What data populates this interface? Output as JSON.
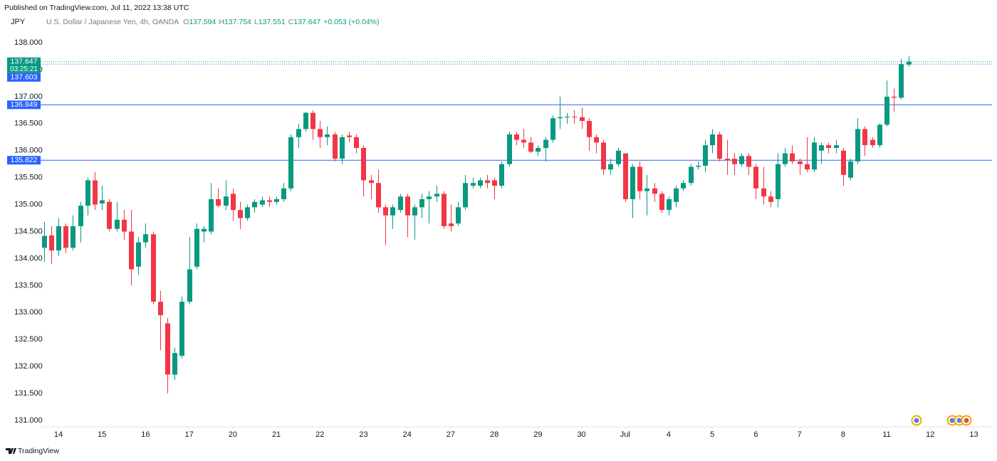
{
  "header": {
    "published": "Published on TradingView.com, Jul 11, 2022 13:38 UTC",
    "brand": "TradingView"
  },
  "chart_data": {
    "type": "candlestick",
    "axis_label": "JPY",
    "title": "U.S. Dollar / Japanese Yen, 4h, OANDA",
    "ohlc_labels": [
      "O",
      "H",
      "L",
      "C"
    ],
    "change": "+0.053 (+0.04%)",
    "up_color": "#089981",
    "down_color": "#f23645",
    "grid": false,
    "ylim": [
      130.882,
      138.527
    ],
    "yticks": [
      {
        "value": 131,
        "label": "131.000"
      },
      {
        "value": 131.5,
        "label": "131.500"
      },
      {
        "value": 132,
        "label": "132.000"
      },
      {
        "value": 132.5,
        "label": "132.500"
      },
      {
        "value": 133,
        "label": "133.000"
      },
      {
        "value": 133.5,
        "label": "133.500"
      },
      {
        "value": 134,
        "label": "134.000"
      },
      {
        "value": 134.5,
        "label": "134.500"
      },
      {
        "value": 135,
        "label": "135.000"
      },
      {
        "value": 135.5,
        "label": "135.500"
      },
      {
        "value": 136,
        "label": "136.000"
      },
      {
        "value": 136.5,
        "label": "136.500"
      },
      {
        "value": 137,
        "label": "137.000"
      },
      {
        "value": 137.5,
        "label": "137.500"
      },
      {
        "value": 138,
        "label": "138.000"
      }
    ],
    "xlim": [
      -0.45,
      130.5
    ],
    "xticks": [
      {
        "value": 2,
        "label": "14"
      },
      {
        "value": 8,
        "label": "15"
      },
      {
        "value": 14,
        "label": "16"
      },
      {
        "value": 20,
        "label": "17"
      },
      {
        "value": 26,
        "label": "20"
      },
      {
        "value": 32,
        "label": "21"
      },
      {
        "value": 38,
        "label": "22"
      },
      {
        "value": 44,
        "label": "23"
      },
      {
        "value": 50,
        "label": "24"
      },
      {
        "value": 56,
        "label": "27"
      },
      {
        "value": 62,
        "label": "28"
      },
      {
        "value": 68,
        "label": "29"
      },
      {
        "value": 74,
        "label": "30"
      },
      {
        "value": 80,
        "label": "Jul"
      },
      {
        "value": 86,
        "label": "4"
      },
      {
        "value": 92,
        "label": "5"
      },
      {
        "value": 98,
        "label": "6"
      },
      {
        "value": 104,
        "label": "7"
      },
      {
        "value": 110,
        "label": "8"
      },
      {
        "value": 116,
        "label": "11"
      },
      {
        "value": 122,
        "label": "12"
      },
      {
        "value": 128,
        "label": "13"
      }
    ],
    "price_lines": [
      {
        "value": 137.647,
        "color": "#089981",
        "dashed": true,
        "countdown": "03:25:21"
      },
      {
        "value": 137.603,
        "color": "#2962ff",
        "dashed": true
      },
      {
        "value": 136.849,
        "color": "#2962ff",
        "dashed": false
      },
      {
        "value": 135.822,
        "color": "#2962ff",
        "dashed": false
      }
    ],
    "candles": [
      {
        "open": 134.2,
        "high": 134.68,
        "low": 133.94,
        "close": 134.42
      },
      {
        "open": 134.43,
        "high": 134.6,
        "low": 133.9,
        "close": 134.15
      },
      {
        "open": 134.15,
        "high": 134.75,
        "low": 134.05,
        "close": 134.6
      },
      {
        "open": 134.6,
        "high": 134.65,
        "low": 134.1,
        "close": 134.2
      },
      {
        "open": 134.2,
        "high": 134.8,
        "low": 134.15,
        "close": 134.6
      },
      {
        "open": 134.6,
        "high": 135.05,
        "low": 134.3,
        "close": 134.98
      },
      {
        "open": 134.98,
        "high": 135.5,
        "low": 134.8,
        "close": 135.45
      },
      {
        "open": 135.45,
        "high": 135.6,
        "low": 134.9,
        "close": 135.0
      },
      {
        "open": 135.02,
        "high": 135.35,
        "low": 134.9,
        "close": 135.08
      },
      {
        "open": 135.05,
        "high": 135.1,
        "low": 134.5,
        "close": 134.55
      },
      {
        "open": 134.55,
        "high": 135.05,
        "low": 134.5,
        "close": 134.72
      },
      {
        "open": 134.72,
        "high": 134.9,
        "low": 134.35,
        "close": 134.5
      },
      {
        "open": 134.5,
        "high": 134.9,
        "low": 133.5,
        "close": 133.8
      },
      {
        "open": 133.85,
        "high": 134.4,
        "low": 133.7,
        "close": 134.3
      },
      {
        "open": 134.3,
        "high": 134.65,
        "low": 134.2,
        "close": 134.45
      },
      {
        "open": 134.45,
        "high": 134.5,
        "low": 133.15,
        "close": 133.2
      },
      {
        "open": 133.2,
        "high": 133.4,
        "low": 132.3,
        "close": 132.95
      },
      {
        "open": 132.8,
        "high": 132.9,
        "low": 131.5,
        "close": 131.85
      },
      {
        "open": 131.85,
        "high": 132.35,
        "low": 131.75,
        "close": 132.25
      },
      {
        "open": 132.2,
        "high": 133.3,
        "low": 132.15,
        "close": 133.2
      },
      {
        "open": 133.2,
        "high": 134.4,
        "low": 133.15,
        "close": 133.8
      },
      {
        "open": 133.85,
        "high": 134.65,
        "low": 133.8,
        "close": 134.55
      },
      {
        "open": 134.5,
        "high": 134.6,
        "low": 134.3,
        "close": 134.55
      },
      {
        "open": 134.5,
        "high": 135.4,
        "low": 134.45,
        "close": 135.1
      },
      {
        "open": 135.1,
        "high": 135.3,
        "low": 134.95,
        "close": 134.98
      },
      {
        "open": 134.98,
        "high": 135.45,
        "low": 134.9,
        "close": 135.15
      },
      {
        "open": 135.2,
        "high": 135.3,
        "low": 134.7,
        "close": 134.9
      },
      {
        "open": 134.9,
        "high": 135.05,
        "low": 134.55,
        "close": 134.75
      },
      {
        "open": 134.75,
        "high": 135.0,
        "low": 134.7,
        "close": 134.95
      },
      {
        "open": 134.95,
        "high": 135.1,
        "low": 134.85,
        "close": 135.05
      },
      {
        "open": 135.0,
        "high": 135.15,
        "low": 134.95,
        "close": 135.08
      },
      {
        "open": 135.08,
        "high": 135.15,
        "low": 134.95,
        "close": 135.05
      },
      {
        "open": 135.05,
        "high": 135.15,
        "low": 135.0,
        "close": 135.1
      },
      {
        "open": 135.1,
        "high": 135.4,
        "low": 135.05,
        "close": 135.3
      },
      {
        "open": 135.3,
        "high": 136.3,
        "low": 135.25,
        "close": 136.25
      },
      {
        "open": 136.25,
        "high": 136.5,
        "low": 136.05,
        "close": 136.4
      },
      {
        "open": 136.4,
        "high": 136.72,
        "low": 136.35,
        "close": 136.7
      },
      {
        "open": 136.7,
        "high": 136.75,
        "low": 136.2,
        "close": 136.4
      },
      {
        "open": 136.4,
        "high": 136.55,
        "low": 136.05,
        "close": 136.25
      },
      {
        "open": 136.25,
        "high": 136.45,
        "low": 136.1,
        "close": 136.3
      },
      {
        "open": 136.3,
        "high": 136.35,
        "low": 135.8,
        "close": 135.85
      },
      {
        "open": 135.85,
        "high": 136.3,
        "low": 135.75,
        "close": 136.25
      },
      {
        "open": 136.28,
        "high": 136.35,
        "low": 136.15,
        "close": 136.25
      },
      {
        "open": 136.25,
        "high": 136.3,
        "low": 135.95,
        "close": 136.05
      },
      {
        "open": 136.05,
        "high": 136.1,
        "low": 135.15,
        "close": 135.45
      },
      {
        "open": 135.45,
        "high": 135.55,
        "low": 135.1,
        "close": 135.4
      },
      {
        "open": 135.4,
        "high": 135.65,
        "low": 134.85,
        "close": 134.95
      },
      {
        "open": 134.95,
        "high": 135.0,
        "low": 134.25,
        "close": 134.8
      },
      {
        "open": 134.8,
        "high": 135.0,
        "low": 134.55,
        "close": 134.95
      },
      {
        "open": 134.9,
        "high": 135.2,
        "low": 134.85,
        "close": 135.15
      },
      {
        "open": 135.15,
        "high": 135.2,
        "low": 134.4,
        "close": 134.8
      },
      {
        "open": 134.8,
        "high": 135.0,
        "low": 134.35,
        "close": 134.95
      },
      {
        "open": 134.95,
        "high": 135.2,
        "low": 134.75,
        "close": 135.1
      },
      {
        "open": 135.1,
        "high": 135.25,
        "low": 134.65,
        "close": 135.15
      },
      {
        "open": 135.15,
        "high": 135.35,
        "low": 135.05,
        "close": 135.2
      },
      {
        "open": 135.2,
        "high": 135.25,
        "low": 134.55,
        "close": 134.6
      },
      {
        "open": 134.65,
        "high": 135.0,
        "low": 134.5,
        "close": 134.6
      },
      {
        "open": 134.65,
        "high": 135.05,
        "low": 134.6,
        "close": 134.95
      },
      {
        "open": 134.95,
        "high": 135.55,
        "low": 134.9,
        "close": 135.4
      },
      {
        "open": 135.35,
        "high": 135.5,
        "low": 135.3,
        "close": 135.4
      },
      {
        "open": 135.35,
        "high": 135.5,
        "low": 135.3,
        "close": 135.45
      },
      {
        "open": 135.45,
        "high": 135.55,
        "low": 135.3,
        "close": 135.4
      },
      {
        "open": 135.45,
        "high": 135.5,
        "low": 135.1,
        "close": 135.35
      },
      {
        "open": 135.35,
        "high": 135.8,
        "low": 135.3,
        "close": 135.75
      },
      {
        "open": 135.75,
        "high": 136.35,
        "low": 135.7,
        "close": 136.3
      },
      {
        "open": 136.3,
        "high": 136.35,
        "low": 136.1,
        "close": 136.2
      },
      {
        "open": 136.2,
        "high": 136.4,
        "low": 136.05,
        "close": 136.15
      },
      {
        "open": 136.15,
        "high": 136.25,
        "low": 135.95,
        "close": 135.98
      },
      {
        "open": 135.98,
        "high": 136.1,
        "low": 135.9,
        "close": 136.05
      },
      {
        "open": 136.05,
        "high": 136.25,
        "low": 135.8,
        "close": 136.2
      },
      {
        "open": 136.2,
        "high": 136.65,
        "low": 136.15,
        "close": 136.6
      },
      {
        "open": 136.6,
        "high": 137.0,
        "low": 136.4,
        "close": 136.62
      },
      {
        "open": 136.62,
        "high": 136.7,
        "low": 136.5,
        "close": 136.63
      },
      {
        "open": 136.63,
        "high": 136.75,
        "low": 136.5,
        "close": 136.62
      },
      {
        "open": 136.62,
        "high": 136.8,
        "low": 136.4,
        "close": 136.55
      },
      {
        "open": 136.55,
        "high": 136.6,
        "low": 136.0,
        "close": 136.25
      },
      {
        "open": 136.25,
        "high": 136.3,
        "low": 135.95,
        "close": 136.15
      },
      {
        "open": 136.15,
        "high": 136.2,
        "low": 135.55,
        "close": 135.65
      },
      {
        "open": 135.65,
        "high": 135.85,
        "low": 135.55,
        "close": 135.75
      },
      {
        "open": 135.75,
        "high": 136.05,
        "low": 135.7,
        "close": 136.0
      },
      {
        "open": 135.95,
        "high": 135.95,
        "low": 135.05,
        "close": 135.1
      },
      {
        "open": 135.1,
        "high": 135.75,
        "low": 134.75,
        "close": 135.7
      },
      {
        "open": 135.7,
        "high": 135.8,
        "low": 135.1,
        "close": 135.25
      },
      {
        "open": 135.25,
        "high": 135.55,
        "low": 134.8,
        "close": 135.3
      },
      {
        "open": 135.3,
        "high": 135.4,
        "low": 135.05,
        "close": 135.2
      },
      {
        "open": 135.2,
        "high": 135.25,
        "low": 134.85,
        "close": 134.9
      },
      {
        "open": 134.9,
        "high": 135.15,
        "low": 134.8,
        "close": 135.1
      },
      {
        "open": 135.05,
        "high": 135.35,
        "low": 134.95,
        "close": 135.3
      },
      {
        "open": 135.3,
        "high": 135.45,
        "low": 135.25,
        "close": 135.4
      },
      {
        "open": 135.4,
        "high": 135.75,
        "low": 135.35,
        "close": 135.7
      },
      {
        "open": 135.7,
        "high": 135.8,
        "low": 135.65,
        "close": 135.72
      },
      {
        "open": 135.72,
        "high": 136.2,
        "low": 135.6,
        "close": 136.1
      },
      {
        "open": 136.1,
        "high": 136.4,
        "low": 135.95,
        "close": 136.3
      },
      {
        "open": 136.3,
        "high": 136.35,
        "low": 135.8,
        "close": 135.85
      },
      {
        "open": 135.85,
        "high": 136.2,
        "low": 135.55,
        "close": 135.82
      },
      {
        "open": 135.85,
        "high": 135.95,
        "low": 135.55,
        "close": 135.75
      },
      {
        "open": 135.75,
        "high": 135.95,
        "low": 135.7,
        "close": 135.9
      },
      {
        "open": 135.9,
        "high": 135.95,
        "low": 135.55,
        "close": 135.7
      },
      {
        "open": 135.7,
        "high": 135.75,
        "low": 135.1,
        "close": 135.3
      },
      {
        "open": 135.3,
        "high": 135.7,
        "low": 135.0,
        "close": 135.15
      },
      {
        "open": 135.15,
        "high": 135.25,
        "low": 134.95,
        "close": 135.05
      },
      {
        "open": 135.1,
        "high": 135.95,
        "low": 134.95,
        "close": 135.75
      },
      {
        "open": 135.75,
        "high": 136.05,
        "low": 135.7,
        "close": 135.95
      },
      {
        "open": 135.95,
        "high": 136.1,
        "low": 135.75,
        "close": 135.8
      },
      {
        "open": 135.8,
        "high": 135.85,
        "low": 135.55,
        "close": 135.75
      },
      {
        "open": 135.75,
        "high": 136.25,
        "low": 135.6,
        "close": 135.65
      },
      {
        "open": 135.65,
        "high": 136.25,
        "low": 135.6,
        "close": 136.15
      },
      {
        "open": 136.0,
        "high": 136.15,
        "low": 135.75,
        "close": 136.1
      },
      {
        "open": 136.1,
        "high": 136.15,
        "low": 135.95,
        "close": 136.05
      },
      {
        "open": 136.05,
        "high": 136.2,
        "low": 135.95,
        "close": 136.1
      },
      {
        "open": 136.0,
        "high": 136.05,
        "low": 135.35,
        "close": 135.55
      },
      {
        "open": 135.5,
        "high": 135.85,
        "low": 135.45,
        "close": 135.8
      },
      {
        "open": 135.8,
        "high": 136.6,
        "low": 135.75,
        "close": 136.4
      },
      {
        "open": 136.4,
        "high": 136.45,
        "low": 135.9,
        "close": 136.1
      },
      {
        "open": 136.2,
        "high": 136.25,
        "low": 136.05,
        "close": 136.1
      },
      {
        "open": 136.1,
        "high": 136.5,
        "low": 136.05,
        "close": 136.48
      },
      {
        "open": 136.48,
        "high": 137.3,
        "low": 136.45,
        "close": 137.0
      },
      {
        "open": 137.0,
        "high": 137.15,
        "low": 136.72,
        "close": 136.98
      },
      {
        "open": 136.98,
        "high": 137.7,
        "low": 136.95,
        "close": 137.6
      },
      {
        "open": 137.594,
        "high": 137.754,
        "low": 137.551,
        "close": 137.647
      }
    ]
  }
}
